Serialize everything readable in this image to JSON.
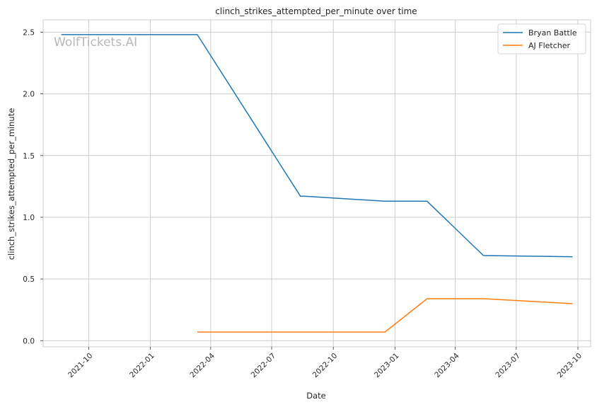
{
  "chart_data": {
    "type": "line",
    "title": "clinch_strikes_attempted_per_minute over time",
    "xlabel": "Date",
    "ylabel": "clinch_strikes_attempted_per_minute",
    "watermark": "WolfTickets.AI",
    "x_axis": {
      "type": "date",
      "range": [
        "2021-07-25",
        "2023-10-20"
      ],
      "ticks": [
        "2021-10-01",
        "2022-01-01",
        "2022-04-01",
        "2022-07-01",
        "2022-10-01",
        "2023-01-01",
        "2023-04-01",
        "2023-07-01",
        "2023-10-01"
      ],
      "tick_labels": [
        "2021-10",
        "2022-01",
        "2022-04",
        "2022-07",
        "2022-10",
        "2023-01",
        "2023-04",
        "2023-07",
        "2023-10"
      ]
    },
    "y_axis": {
      "range": [
        -0.05,
        2.6
      ],
      "ticks": [
        0.0,
        0.5,
        1.0,
        1.5,
        2.0,
        2.5
      ],
      "tick_labels": [
        "0.0",
        "0.5",
        "1.0",
        "1.5",
        "2.0",
        "2.5"
      ]
    },
    "grid": true,
    "legend_position": "top-right",
    "series": [
      {
        "name": "Bryan Battle",
        "color": "#1f77b4",
        "points": [
          {
            "x": "2021-08-21",
            "y": 2.48
          },
          {
            "x": "2022-03-12",
            "y": 2.48
          },
          {
            "x": "2022-08-13",
            "y": 1.17
          },
          {
            "x": "2022-08-20",
            "y": 1.17
          },
          {
            "x": "2022-12-17",
            "y": 1.13
          },
          {
            "x": "2023-02-18",
            "y": 1.13
          },
          {
            "x": "2023-05-13",
            "y": 0.69
          },
          {
            "x": "2023-09-23",
            "y": 0.68
          }
        ]
      },
      {
        "name": "AJ Fletcher",
        "color": "#ff7f0e",
        "points": [
          {
            "x": "2022-03-12",
            "y": 0.07
          },
          {
            "x": "2022-12-17",
            "y": 0.07
          },
          {
            "x": "2023-02-18",
            "y": 0.34
          },
          {
            "x": "2023-05-13",
            "y": 0.34
          },
          {
            "x": "2023-09-23",
            "y": 0.3
          }
        ]
      }
    ]
  }
}
